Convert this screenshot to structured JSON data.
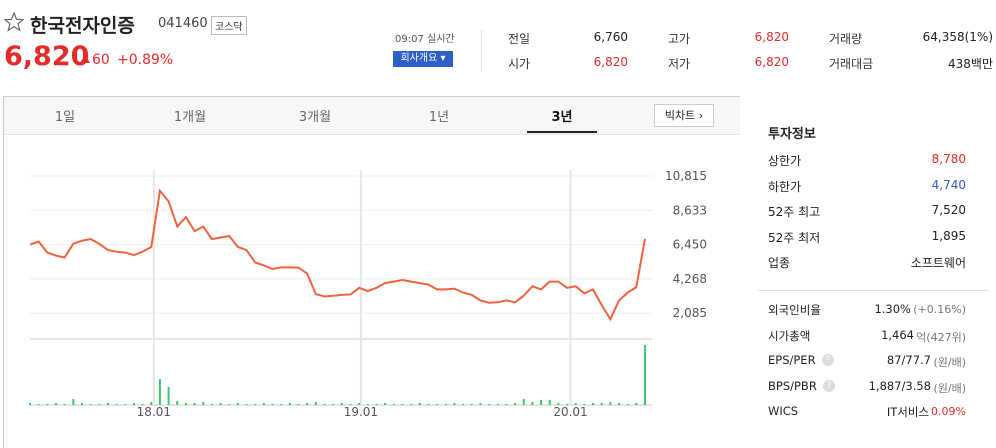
{
  "header": {
    "title": "한국전자인증",
    "code": "041460",
    "market": "코스닥",
    "price": "6,820",
    "change": "60",
    "change_rate": "+0.89%",
    "time": "09:07 실시간",
    "company_button": "회사개요"
  },
  "stats": [
    {
      "label": "전일",
      "value": "6,760"
    },
    {
      "label": "고가",
      "value": "6,820",
      "tone": "up"
    },
    {
      "label": "거래량",
      "value": "64,358(1%)"
    },
    {
      "label": "시가",
      "value": "6,820",
      "tone": "up"
    },
    {
      "label": "저가",
      "value": "6,820",
      "tone": "up"
    },
    {
      "label": "거래대금",
      "value": "438백만"
    }
  ],
  "tabs": [
    "1일",
    "1개월",
    "3개월",
    "1년",
    "3년"
  ],
  "selected_tab": 4,
  "big_chart_button": "빅차트",
  "chart": {
    "type": "line",
    "color": "#f0633f",
    "volume_color": "#3cc86e",
    "grid": true,
    "values": [
      6450,
      6640,
      5940,
      5750,
      5630,
      6510,
      6700,
      6800,
      6500,
      6100,
      6000,
      5940,
      5780,
      6000,
      6300,
      9870,
      9200,
      7600,
      8200,
      7300,
      7600,
      6800,
      6900,
      7000,
      6300,
      6100,
      5310,
      5130,
      4900,
      5000,
      5000,
      4990,
      4600,
      3300,
      3150,
      3200,
      3250,
      3280,
      3700,
      3500,
      3700,
      4000,
      4100,
      4200,
      4100,
      4000,
      3900,
      3600,
      3600,
      3650,
      3400,
      3250,
      2900,
      2750,
      2780,
      2900,
      2780,
      3200,
      3800,
      3600,
      4100,
      4100,
      3700,
      3800,
      3350,
      3600,
      2600,
      1700,
      2900,
      3400,
      3750,
      6820
    ],
    "volume": [
      2,
      1,
      1,
      2,
      1,
      6,
      2,
      1,
      1,
      2,
      1,
      1,
      2,
      1,
      3,
      26,
      18,
      4,
      2,
      2,
      3,
      1,
      2,
      1,
      2,
      1,
      1,
      2,
      1,
      1,
      2,
      1,
      2,
      3,
      1,
      1,
      2,
      1,
      2,
      1,
      1,
      2,
      1,
      1,
      1,
      2,
      1,
      1,
      1,
      2,
      1,
      1,
      2,
      1,
      1,
      1,
      2,
      6,
      3,
      5,
      5,
      2,
      1,
      2,
      1,
      2,
      2,
      3,
      2,
      1,
      2,
      60
    ],
    "xlim": [
      0,
      71
    ],
    "xticks": [
      {
        "value": 14.3,
        "label": "18.01"
      },
      {
        "value": 38.2,
        "label": "19.01"
      },
      {
        "value": 62.4,
        "label": "20.01"
      }
    ],
    "ylim": [
      700,
      12150
    ],
    "yticks": [
      {
        "value": 10815,
        "label": "10,815"
      },
      {
        "value": 8633,
        "label": "8,633"
      },
      {
        "value": 6450,
        "label": "6,450"
      },
      {
        "value": 4268,
        "label": "4,268"
      },
      {
        "value": 2085,
        "label": "2,085"
      }
    ]
  },
  "investment_info": {
    "title": "투자정보",
    "rows": [
      {
        "label": "상한가",
        "value": "8,780",
        "tone": "up"
      },
      {
        "label": "하한가",
        "value": "4,740",
        "tone": "down"
      },
      {
        "label": "52주 최고",
        "value": "7,520"
      },
      {
        "label": "52주 최저",
        "value": "1,895"
      },
      {
        "label": "업종",
        "value": "소프트웨어"
      }
    ],
    "rows2": [
      {
        "label": "외국인비율",
        "value": "1.30%",
        "note": "(+0.16%)"
      },
      {
        "label": "시가총액",
        "value": "1,464",
        "note": "억(427위)"
      },
      {
        "label": "EPS/PER",
        "value": "87/77.7",
        "note": "(원/배)",
        "help": true
      },
      {
        "label": "BPS/PBR",
        "value": "1,887/3.58",
        "note": "(원/배)",
        "help": true
      },
      {
        "label": "WICS",
        "value": "IT서비스",
        "note": "0.09%",
        "note_tone": "up"
      }
    ]
  }
}
